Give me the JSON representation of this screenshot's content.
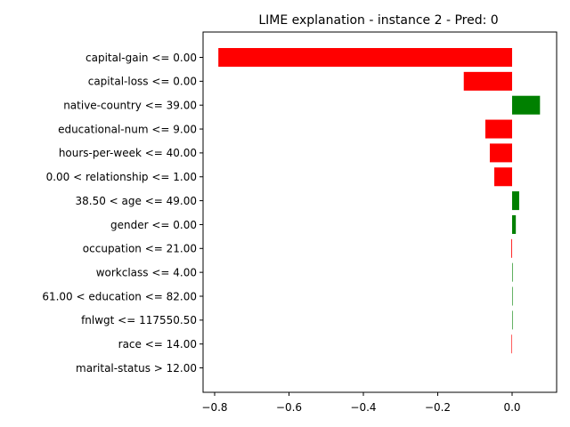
{
  "chart_data": {
    "type": "bar",
    "orientation": "horizontal",
    "title": "LIME explanation - instance 2 - Pred: 0",
    "xlabel": "",
    "ylabel": "",
    "xlim": [
      -0.8,
      0.1
    ],
    "xticks": [
      -0.8,
      -0.6,
      -0.4,
      -0.2,
      0.0
    ],
    "xtick_labels": [
      "−0.8",
      "−0.6",
      "−0.4",
      "−0.2",
      "0.0"
    ],
    "grid": false,
    "categories": [
      "capital-gain <= 0.00",
      "capital-loss <= 0.00",
      "native-country <= 39.00",
      "educational-num <= 9.00",
      "hours-per-week <= 40.00",
      "0.00 < relationship <= 1.00",
      "38.50 < age <= 49.00",
      "gender <= 0.00",
      "occupation <= 21.00",
      "workclass <= 4.00",
      "61.00 < education <= 82.00",
      "fnlwgt <= 117550.50",
      "race <= 14.00",
      "marital-status > 12.00"
    ],
    "values": [
      -0.79,
      -0.13,
      0.075,
      -0.072,
      -0.06,
      -0.048,
      0.019,
      0.01,
      -0.002,
      0.0015,
      0.0012,
      0.001,
      -0.0015,
      0.0
    ],
    "colors": {
      "negative": "#ff0000",
      "positive": "#008000"
    }
  }
}
